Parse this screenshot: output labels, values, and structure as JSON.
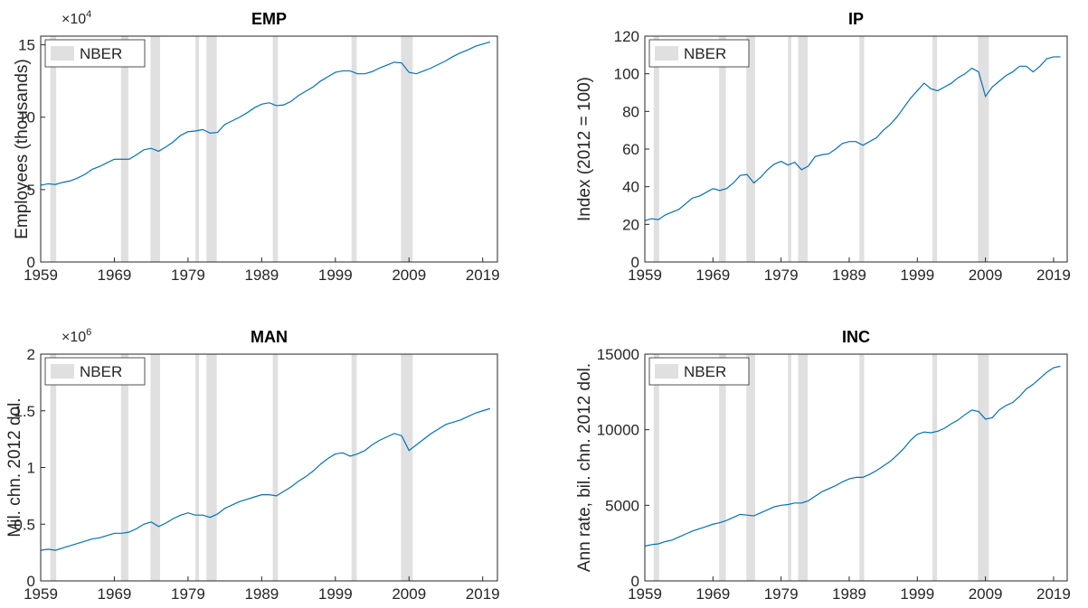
{
  "chart_data": [
    {
      "type": "line",
      "title": "EMP",
      "ylabel": "Employees (thousands)",
      "y_multiplier": {
        "base": "×10",
        "exponent": "4"
      },
      "xlim": [
        1959,
        2021
      ],
      "xticks": [
        1959,
        1969,
        1979,
        1989,
        1999,
        2009,
        2019
      ],
      "ylim": [
        0,
        15.6
      ],
      "yticks": [
        0,
        5,
        10,
        15
      ],
      "nber": {
        "name": "NBER",
        "color": "#e0e0e0",
        "ranges": [
          [
            1960.3,
            1961.1
          ],
          [
            1969.9,
            1970.9
          ],
          [
            1973.9,
            1975.2
          ],
          [
            1980.0,
            1980.5
          ],
          [
            1981.5,
            1982.9
          ],
          [
            1990.5,
            1991.2
          ],
          [
            2001.2,
            2001.9
          ],
          [
            2007.9,
            2009.5
          ]
        ]
      },
      "x": [
        1959,
        1960,
        1961,
        1962,
        1963,
        1964,
        1965,
        1966,
        1967,
        1968,
        1969,
        1970,
        1971,
        1972,
        1973,
        1974,
        1975,
        1976,
        1977,
        1978,
        1979,
        1980,
        1981,
        1982,
        1983,
        1984,
        1985,
        1986,
        1987,
        1988,
        1989,
        1990,
        1991,
        1992,
        1993,
        1994,
        1995,
        1996,
        1997,
        1998,
        1999,
        2000,
        2001,
        2002,
        2003,
        2004,
        2005,
        2006,
        2007,
        2008,
        2009,
        2010,
        2011,
        2012,
        2013,
        2014,
        2015,
        2016,
        2017,
        2018,
        2019,
        2020
      ],
      "series": [
        {
          "color": "#0072bd",
          "values": [
            5.3,
            5.4,
            5.35,
            5.5,
            5.6,
            5.8,
            6.05,
            6.4,
            6.6,
            6.85,
            7.1,
            7.1,
            7.1,
            7.4,
            7.75,
            7.85,
            7.65,
            7.95,
            8.3,
            8.75,
            9.0,
            9.05,
            9.15,
            8.9,
            8.95,
            9.5,
            9.75,
            10.0,
            10.3,
            10.65,
            10.9,
            11.0,
            10.8,
            10.85,
            11.1,
            11.5,
            11.8,
            12.1,
            12.5,
            12.8,
            13.1,
            13.2,
            13.2,
            13.0,
            13.0,
            13.15,
            13.4,
            13.6,
            13.8,
            13.75,
            13.1,
            13.0,
            13.2,
            13.4,
            13.65,
            13.9,
            14.2,
            14.45,
            14.65,
            14.9,
            15.05,
            15.2
          ]
        }
      ]
    },
    {
      "type": "line",
      "title": "IP",
      "ylabel": "Index (2012 = 100)",
      "xlim": [
        1959,
        2021
      ],
      "xticks": [
        1959,
        1969,
        1979,
        1989,
        1999,
        2009,
        2019
      ],
      "ylim": [
        0,
        120
      ],
      "yticks": [
        0,
        20,
        40,
        60,
        80,
        100,
        120
      ],
      "nber": {
        "name": "NBER",
        "color": "#e0e0e0",
        "ranges": [
          [
            1960.3,
            1961.1
          ],
          [
            1969.9,
            1970.9
          ],
          [
            1973.9,
            1975.2
          ],
          [
            1980.0,
            1980.5
          ],
          [
            1981.5,
            1982.9
          ],
          [
            1990.5,
            1991.2
          ],
          [
            2001.2,
            2001.9
          ],
          [
            2007.9,
            2009.5
          ]
        ]
      },
      "x": [
        1959,
        1960,
        1961,
        1962,
        1963,
        1964,
        1965,
        1966,
        1967,
        1968,
        1969,
        1970,
        1971,
        1972,
        1973,
        1974,
        1975,
        1976,
        1977,
        1978,
        1979,
        1980,
        1981,
        1982,
        1983,
        1984,
        1985,
        1986,
        1987,
        1988,
        1989,
        1990,
        1991,
        1992,
        1993,
        1994,
        1995,
        1996,
        1997,
        1998,
        1999,
        2000,
        2001,
        2002,
        2003,
        2004,
        2005,
        2006,
        2007,
        2008,
        2009,
        2010,
        2011,
        2012,
        2013,
        2014,
        2015,
        2016,
        2017,
        2018,
        2019,
        2020
      ],
      "series": [
        {
          "color": "#0072bd",
          "values": [
            22,
            23,
            22.5,
            25,
            26.5,
            28,
            31,
            34,
            35,
            37,
            39,
            38,
            39,
            42,
            46,
            46.5,
            42,
            45,
            49,
            52,
            53.5,
            51.5,
            53,
            49,
            51,
            56,
            57,
            57.5,
            60,
            63,
            64,
            64,
            62,
            64,
            66,
            70,
            73,
            77,
            82,
            87,
            91,
            95,
            92,
            91,
            93,
            95,
            98,
            100,
            103,
            101,
            88,
            93,
            96,
            99,
            101,
            104,
            104,
            101,
            104,
            108,
            109,
            109
          ]
        }
      ]
    },
    {
      "type": "line",
      "title": "MAN",
      "ylabel": "Mil. chn. 2012 dol.",
      "y_multiplier": {
        "base": "×10",
        "exponent": "6"
      },
      "xlim": [
        1959,
        2021
      ],
      "xticks": [
        1959,
        1969,
        1979,
        1989,
        1999,
        2009,
        2019
      ],
      "ylim": [
        0,
        2
      ],
      "yticks": [
        0,
        0.5,
        1,
        1.5,
        2
      ],
      "nber": {
        "name": "NBER",
        "color": "#e0e0e0",
        "ranges": [
          [
            1960.3,
            1961.1
          ],
          [
            1969.9,
            1970.9
          ],
          [
            1973.9,
            1975.2
          ],
          [
            1980.0,
            1980.5
          ],
          [
            1981.5,
            1982.9
          ],
          [
            1990.5,
            1991.2
          ],
          [
            2001.2,
            2001.9
          ],
          [
            2007.9,
            2009.5
          ]
        ]
      },
      "x": [
        1959,
        1960,
        1961,
        1962,
        1963,
        1964,
        1965,
        1966,
        1967,
        1968,
        1969,
        1970,
        1971,
        1972,
        1973,
        1974,
        1975,
        1976,
        1977,
        1978,
        1979,
        1980,
        1981,
        1982,
        1983,
        1984,
        1985,
        1986,
        1987,
        1988,
        1989,
        1990,
        1991,
        1992,
        1993,
        1994,
        1995,
        1996,
        1997,
        1998,
        1999,
        2000,
        2001,
        2002,
        2003,
        2004,
        2005,
        2006,
        2007,
        2008,
        2009,
        2010,
        2011,
        2012,
        2013,
        2014,
        2015,
        2016,
        2017,
        2018,
        2019,
        2020
      ],
      "series": [
        {
          "color": "#0072bd",
          "values": [
            0.27,
            0.28,
            0.27,
            0.29,
            0.31,
            0.33,
            0.35,
            0.37,
            0.38,
            0.4,
            0.42,
            0.42,
            0.43,
            0.46,
            0.5,
            0.52,
            0.48,
            0.51,
            0.55,
            0.58,
            0.6,
            0.58,
            0.58,
            0.56,
            0.59,
            0.64,
            0.67,
            0.7,
            0.72,
            0.74,
            0.76,
            0.76,
            0.75,
            0.79,
            0.83,
            0.88,
            0.92,
            0.97,
            1.03,
            1.08,
            1.12,
            1.13,
            1.1,
            1.12,
            1.15,
            1.2,
            1.24,
            1.27,
            1.3,
            1.28,
            1.15,
            1.2,
            1.25,
            1.3,
            1.34,
            1.38,
            1.4,
            1.42,
            1.45,
            1.48,
            1.5,
            1.52
          ]
        }
      ]
    },
    {
      "type": "line",
      "title": "INC",
      "ylabel": "Ann rate, bil. chn. 2012 dol.",
      "xlim": [
        1959,
        2021
      ],
      "xticks": [
        1959,
        1969,
        1979,
        1989,
        1999,
        2009,
        2019
      ],
      "ylim": [
        0,
        15000
      ],
      "yticks": [
        0,
        5000,
        10000,
        15000
      ],
      "nber": {
        "name": "NBER",
        "color": "#e0e0e0",
        "ranges": [
          [
            1960.3,
            1961.1
          ],
          [
            1969.9,
            1970.9
          ],
          [
            1973.9,
            1975.2
          ],
          [
            1980.0,
            1980.5
          ],
          [
            1981.5,
            1982.9
          ],
          [
            1990.5,
            1991.2
          ],
          [
            2001.2,
            2001.9
          ],
          [
            2007.9,
            2009.5
          ]
        ]
      },
      "x": [
        1959,
        1960,
        1961,
        1962,
        1963,
        1964,
        1965,
        1966,
        1967,
        1968,
        1969,
        1970,
        1971,
        1972,
        1973,
        1974,
        1975,
        1976,
        1977,
        1978,
        1979,
        1980,
        1981,
        1982,
        1983,
        1984,
        1985,
        1986,
        1987,
        1988,
        1989,
        1990,
        1991,
        1992,
        1993,
        1994,
        1995,
        1996,
        1997,
        1998,
        1999,
        2000,
        2001,
        2002,
        2003,
        2004,
        2005,
        2006,
        2007,
        2008,
        2009,
        2010,
        2011,
        2012,
        2013,
        2014,
        2015,
        2016,
        2017,
        2018,
        2019,
        2020
      ],
      "series": [
        {
          "color": "#0072bd",
          "values": [
            2300,
            2400,
            2450,
            2600,
            2700,
            2900,
            3100,
            3300,
            3450,
            3600,
            3750,
            3850,
            4000,
            4200,
            4400,
            4350,
            4300,
            4500,
            4700,
            4900,
            5000,
            5050,
            5150,
            5150,
            5300,
            5600,
            5900,
            6100,
            6300,
            6550,
            6750,
            6850,
            6850,
            7050,
            7300,
            7600,
            7900,
            8300,
            8750,
            9300,
            9700,
            9850,
            9800,
            9900,
            10100,
            10400,
            10650,
            11000,
            11300,
            11200,
            10700,
            10800,
            11300,
            11600,
            11800,
            12200,
            12700,
            13000,
            13400,
            13800,
            14100,
            14200
          ]
        }
      ]
    }
  ]
}
